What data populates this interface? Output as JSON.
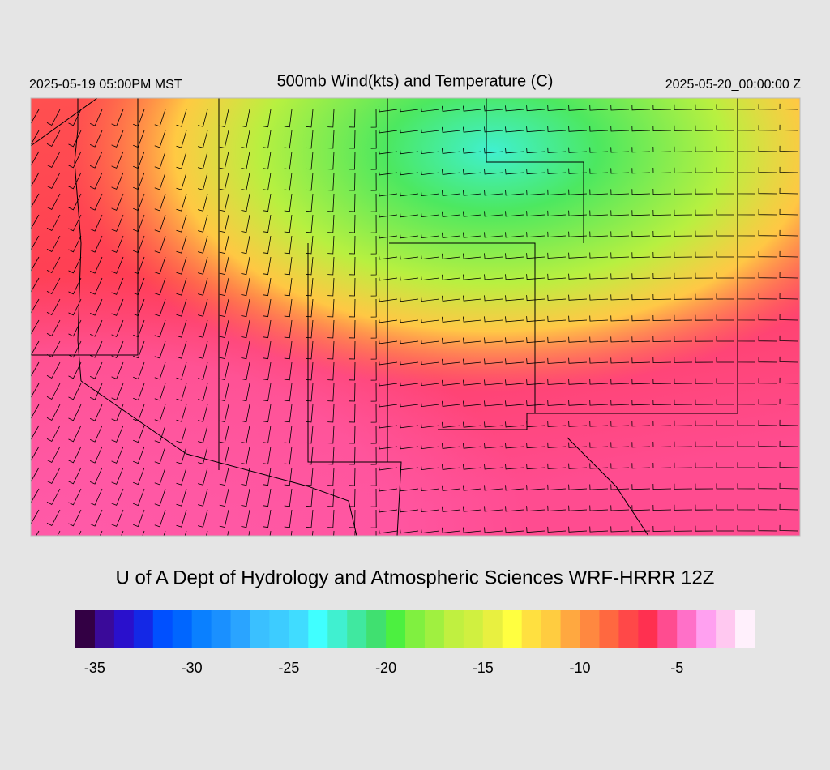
{
  "header": {
    "left": "2025-05-19 05:00PM MST",
    "title": "500mb Wind(kts) and Temperature (C)",
    "right": "2025-05-20_00:00:00 Z"
  },
  "footer": "U of A Dept of Hydrology and Atmospheric Sciences WRF-HRRR 12Z",
  "colorbar": {
    "lim": [
      -36,
      -1
    ],
    "ticks": [
      -35,
      -30,
      -25,
      -20,
      -15,
      -10,
      -5
    ],
    "colors": [
      "#330044",
      "#3a0a99",
      "#2a10cc",
      "#1428e6",
      "#0050ff",
      "#0066ff",
      "#0a80ff",
      "#1a90ff",
      "#2aa4ff",
      "#3ac0ff",
      "#3dccff",
      "#40dcff",
      "#40ffff",
      "#40f0d0",
      "#40e8a0",
      "#40e070",
      "#4cf040",
      "#80f040",
      "#a0f040",
      "#c0f040",
      "#d0f040",
      "#e8f040",
      "#ffff40",
      "#ffe040",
      "#ffcc40",
      "#ffa840",
      "#ff8840",
      "#ff6840",
      "#ff4848",
      "#ff3050",
      "#ff4c90",
      "#ff70c8",
      "#ffa0f0",
      "#ffc8f0",
      "#fff0fc"
    ]
  }
}
